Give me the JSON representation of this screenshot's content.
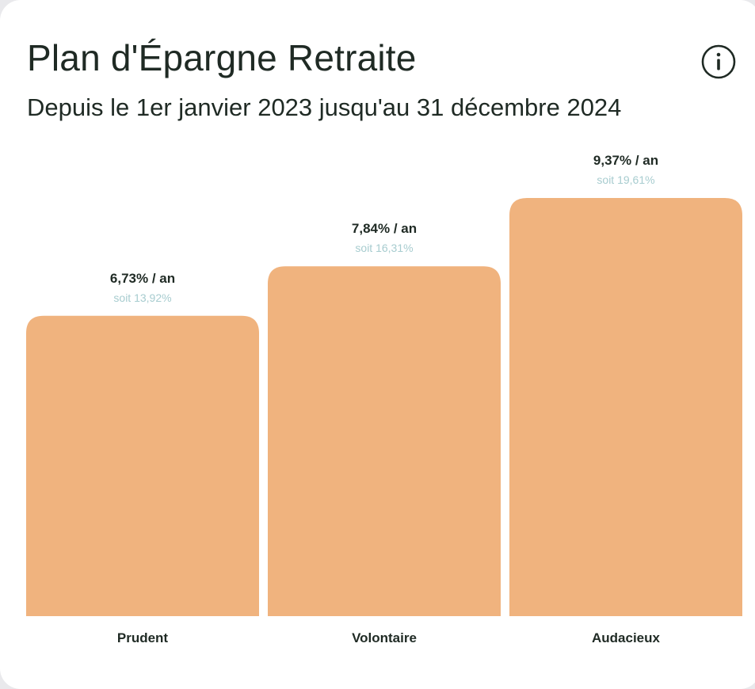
{
  "card": {
    "title": "Plan d'Épargne Retraite",
    "subtitle": "Depuis le 1er janvier 2023 jusqu'au 31 décembre 2024",
    "info_icon": "info-circle-icon"
  },
  "colors": {
    "bar": "#f0b37e",
    "rate_text": "#1f2a24",
    "total_text": "#a7cccf"
  },
  "chart_data": {
    "type": "bar",
    "title": "Plan d'Épargne Retraite",
    "subtitle": "Depuis le 1er janvier 2023 jusqu'au 31 décembre 2024",
    "categories": [
      "Prudent",
      "Volontaire",
      "Audacieux"
    ],
    "values": [
      6.73,
      7.84,
      9.37
    ],
    "data_labels": [
      "6,73% / an",
      "7,84% / an",
      "9,37% / an"
    ],
    "total_labels": [
      "soit 13,92%",
      "soit 16,31%",
      "soit 19,61%"
    ],
    "grid": false,
    "legend": "none"
  }
}
